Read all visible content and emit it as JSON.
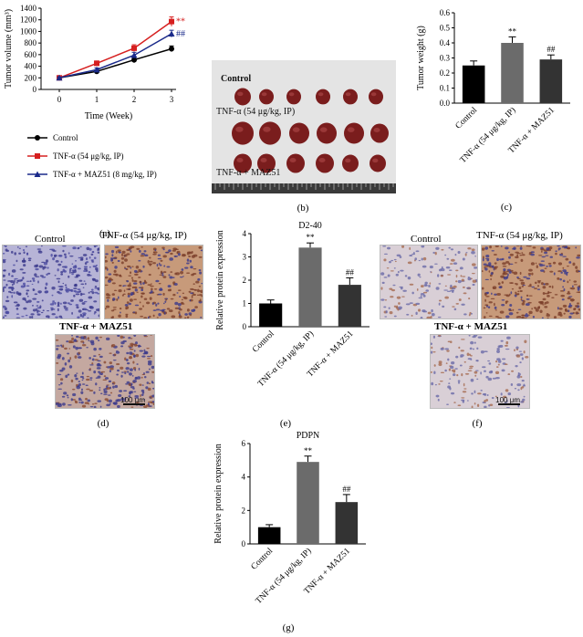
{
  "panels": {
    "a": "(a)",
    "b": "(b)",
    "c": "(c)",
    "d": "(d)",
    "e": "(e)",
    "f": "(f)",
    "g": "(g)"
  },
  "colors": {
    "control": "#000000",
    "tnf": "#d62020",
    "maz": "#1a2a8a",
    "bar_control": "#000000",
    "bar_tnf": "#6b6b6b",
    "bar_maz": "#333333"
  },
  "photo_b": {
    "label_control": "Control",
    "label_tnf": "TNF-α (54 μg/kg, IP)",
    "label_maz": "TNF-α + MAZ51"
  },
  "micro_d": {
    "cap_control": "Control",
    "cap_tnf": "TNF-α (54 μg/kg, IP)",
    "cap_maz": "TNF-α + MAZ51",
    "scale": "100 μm"
  },
  "micro_f": {
    "cap_control": "Control",
    "cap_tnf": "TNF-α (54 μg/kg, IP)",
    "cap_maz": "TNF-α + MAZ51",
    "scale": "100 μm"
  },
  "chart_data": [
    {
      "id": "a",
      "type": "line",
      "ylabel": "Tumor volume (mm³)",
      "xlabel": "Time (Week)",
      "x": [
        0,
        1,
        2,
        3
      ],
      "xlim": [
        0,
        3
      ],
      "ylim": [
        0,
        1400
      ],
      "yticks": [
        "0",
        "200",
        "400",
        "600",
        "800",
        "1000",
        "1200",
        "1400"
      ],
      "xticks": [
        "0",
        "1",
        "2",
        "3"
      ],
      "series": [
        {
          "name": "Control",
          "values": [
            200,
            310,
            510,
            700
          ],
          "err": [
            15,
            25,
            50,
            50
          ],
          "marker": "circle",
          "color": "#000000"
        },
        {
          "name": "TNF-α (54 μg/kg, IP)",
          "values": [
            200,
            450,
            710,
            1170
          ],
          "err": [
            15,
            40,
            60,
            80
          ],
          "marker": "square",
          "color": "#d62020"
        },
        {
          "name": "TNF-α + MAZ51 (8 mg/kg, IP)",
          "values": [
            200,
            340,
            590,
            960
          ],
          "err": [
            15,
            30,
            50,
            60
          ],
          "marker": "triangle",
          "color": "#1a2a8a"
        }
      ],
      "annotations": [
        {
          "text": "**",
          "series": 1,
          "x": 3
        },
        {
          "text": "##",
          "series": 2,
          "x": 3
        }
      ],
      "legend": "bottom"
    },
    {
      "id": "c",
      "type": "bar",
      "ylabel": "Tumor weight (g)",
      "categories": [
        "Control",
        "TNF-α (54 μg/kg, IP)",
        "TNF-α + MAZ51"
      ],
      "values": [
        0.25,
        0.4,
        0.29
      ],
      "err": [
        0.03,
        0.04,
        0.03
      ],
      "ylim": [
        0,
        0.6
      ],
      "yticks": [
        "0.0",
        "0.1",
        "0.2",
        "0.3",
        "0.4",
        "0.5",
        "0.6"
      ],
      "annotations": [
        "",
        "**",
        "##"
      ]
    },
    {
      "id": "e",
      "type": "bar",
      "title": "D2-40",
      "ylabel": "Relative protein expression",
      "categories": [
        "Control",
        "TNF-α (54 μg/kg, IP)",
        "TNF-α + MAZ51"
      ],
      "values": [
        1.0,
        3.4,
        1.8
      ],
      "err": [
        0.15,
        0.2,
        0.3
      ],
      "ylim": [
        0,
        4
      ],
      "yticks": [
        "0",
        "1",
        "2",
        "3",
        "4"
      ],
      "annotations": [
        "",
        "**",
        "##"
      ]
    },
    {
      "id": "g",
      "type": "bar",
      "title": "PDPN",
      "ylabel": "Relative protein expression",
      "categories": [
        "Control",
        "TNF-α (54 μg/kg, IP)",
        "TNF-α + MAZ51"
      ],
      "values": [
        1.0,
        4.9,
        2.5
      ],
      "err": [
        0.15,
        0.35,
        0.45
      ],
      "ylim": [
        0,
        6
      ],
      "yticks": [
        "0",
        "2",
        "4",
        "6"
      ],
      "annotations": [
        "",
        "**",
        "##"
      ]
    }
  ]
}
